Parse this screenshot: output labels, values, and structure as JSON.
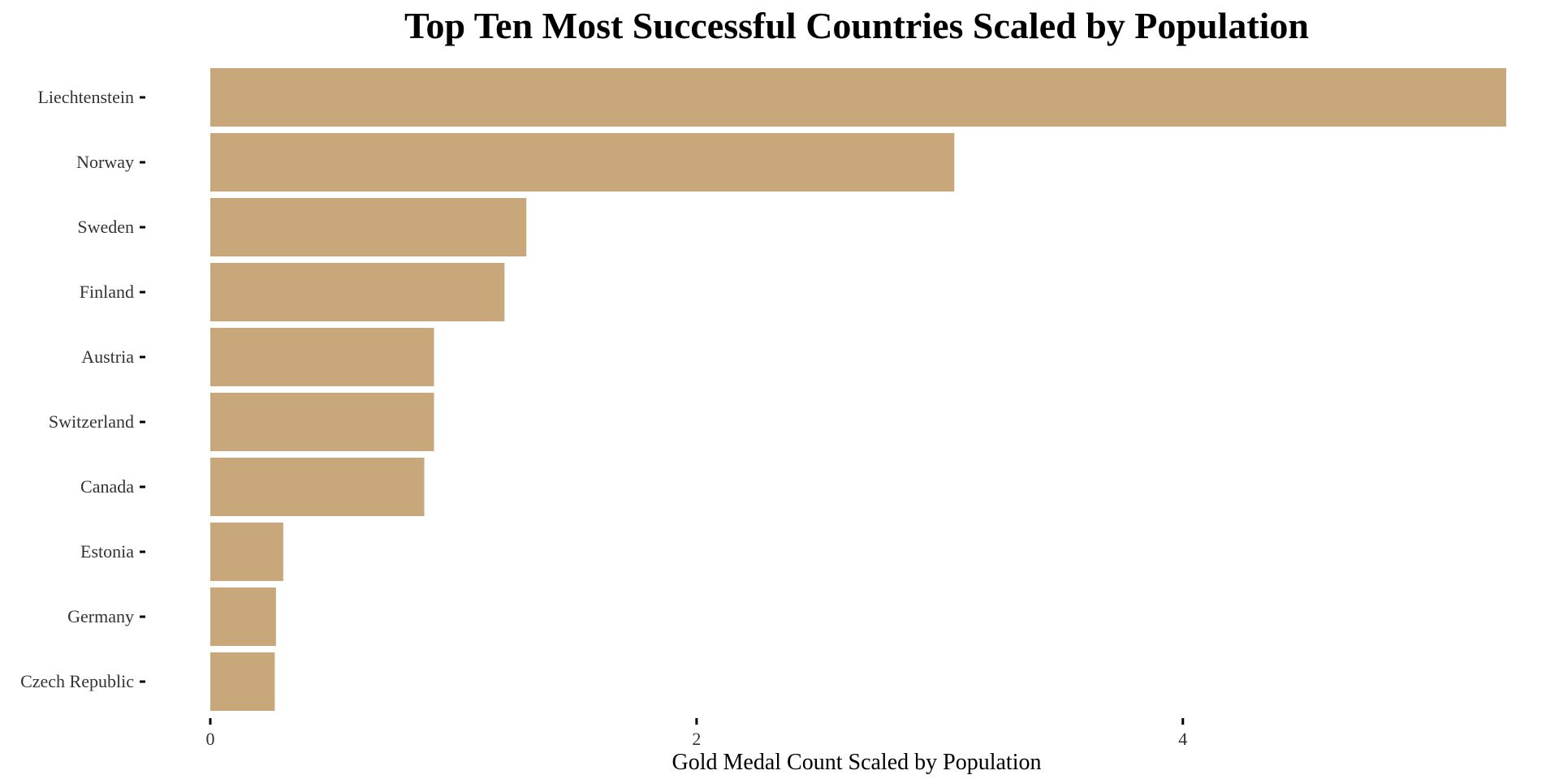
{
  "chart_data": {
    "type": "bar",
    "orientation": "horizontal",
    "title": "Top Ten Most Successful Countries Scaled by Population",
    "xlabel": "Gold Medal Count Scaled by Population",
    "ylabel": "",
    "categories": [
      "Liechtenstein",
      "Norway",
      "Sweden",
      "Finland",
      "Austria",
      "Switzerland",
      "Canada",
      "Estonia",
      "Germany",
      "Czech Republic"
    ],
    "values": [
      5.33,
      3.06,
      1.3,
      1.21,
      0.92,
      0.92,
      0.88,
      0.3,
      0.27,
      0.265
    ],
    "xlim": [
      0,
      5.33
    ],
    "x_ticks": [
      0,
      2,
      4
    ],
    "x_tick_labels": [
      "0",
      "2",
      "4"
    ],
    "bar_color": "#c8a77a",
    "grid": false,
    "legend": "none"
  }
}
